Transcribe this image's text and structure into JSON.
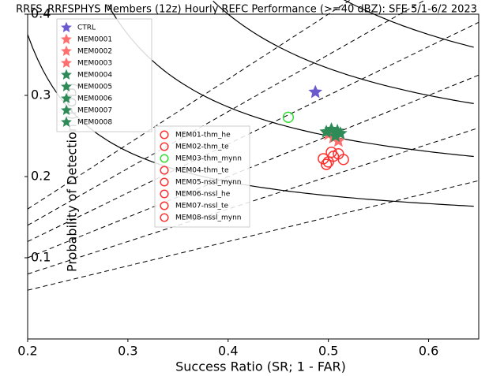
{
  "chart_data": {
    "type": "scatter",
    "title": "RRFS_RRFSPHYS Members (12z) Hourly REFC Performance (>=40 dBZ): SFE 5/1-6/2 2023",
    "x_label": "Success Ratio (SR; 1 - FAR)",
    "y_label": "Probability of Detection (POD)",
    "xlim": [
      0.2,
      0.65
    ],
    "ylim": [
      0.0,
      0.4
    ],
    "xticks": [
      0.2,
      0.3,
      0.4,
      0.5,
      0.6
    ],
    "yticks": [
      0.1,
      0.2,
      0.3,
      0.4
    ],
    "series": [
      {
        "name": "CTRL",
        "color": "#6a5acd",
        "marker": "star",
        "x": [
          0.487
        ],
        "values": [
          0.304
        ]
      },
      {
        "name": "MEM0001",
        "color": "#ff6f6f",
        "marker": "star",
        "x": [
          0.505
        ],
        "values": [
          0.248
        ]
      },
      {
        "name": "MEM0002",
        "color": "#ff6f6f",
        "marker": "star",
        "x": [
          0.51
        ],
        "values": [
          0.244
        ]
      },
      {
        "name": "MEM0003",
        "color": "#ff6f6f",
        "marker": "star",
        "x": [
          0.5
        ],
        "values": [
          0.252
        ]
      },
      {
        "name": "MEM0004",
        "color": "#2e8b57",
        "marker": "star",
        "x": [
          0.498
        ],
        "values": [
          0.255
        ]
      },
      {
        "name": "MEM0005",
        "color": "#2e8b57",
        "marker": "star",
        "x": [
          0.507
        ],
        "values": [
          0.25
        ]
      },
      {
        "name": "MEM0006",
        "color": "#2e8b57",
        "marker": "star",
        "x": [
          0.512
        ],
        "values": [
          0.253
        ]
      },
      {
        "name": "MEM0007",
        "color": "#2e8b57",
        "marker": "star",
        "x": [
          0.503
        ],
        "values": [
          0.258
        ]
      },
      {
        "name": "MEM0008",
        "color": "#2e8b57",
        "marker": "star",
        "x": [
          0.509
        ],
        "values": [
          0.256
        ]
      },
      {
        "name": "MEM01-thm_he",
        "color": "#ff3030",
        "marker": "circle",
        "x": [
          0.495
        ],
        "values": [
          0.222
        ]
      },
      {
        "name": "MEM02-thm_te",
        "color": "#ff3030",
        "marker": "circle",
        "x": [
          0.5
        ],
        "values": [
          0.218
        ]
      },
      {
        "name": "MEM03-thm_mynn",
        "color": "#33dd33",
        "marker": "circle",
        "x": [
          0.46
        ],
        "values": [
          0.273
        ]
      },
      {
        "name": "MEM04-thm_te",
        "color": "#ff3030",
        "marker": "circle",
        "x": [
          0.505
        ],
        "values": [
          0.225
        ]
      },
      {
        "name": "MEM05-nssl_mynn",
        "color": "#ff3030",
        "marker": "circle",
        "x": [
          0.51
        ],
        "values": [
          0.228
        ]
      },
      {
        "name": "MEM06-nssl_he",
        "color": "#ff3030",
        "marker": "circle",
        "x": [
          0.498
        ],
        "values": [
          0.215
        ]
      },
      {
        "name": "MEM07-nssl_te",
        "color": "#ff3030",
        "marker": "circle",
        "x": [
          0.503
        ],
        "values": [
          0.23
        ]
      },
      {
        "name": "MEM08-nssl_mynn",
        "color": "#ff3030",
        "marker": "circle",
        "x": [
          0.515
        ],
        "values": [
          0.221
        ]
      }
    ]
  }
}
